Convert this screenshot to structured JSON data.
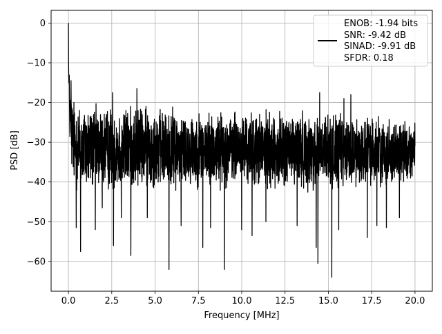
{
  "chart_data": {
    "type": "line",
    "xlabel": "Frequency [MHz]",
    "ylabel": "PSD [dB]",
    "xlim": [
      -1.0,
      21.0
    ],
    "ylim": [
      -67.5,
      3.2
    ],
    "x_ticks": [
      0.0,
      2.5,
      5.0,
      7.5,
      10.0,
      12.5,
      15.0,
      17.5,
      20.0
    ],
    "x_tick_labels": [
      "0.0",
      "2.5",
      "5.0",
      "7.5",
      "10.0",
      "12.5",
      "15.0",
      "17.5",
      "20.0"
    ],
    "y_ticks": [
      0,
      -10,
      -20,
      -30,
      -40,
      -50,
      -60
    ],
    "y_tick_labels": [
      "0",
      "−10",
      "−20",
      "−30",
      "−40",
      "−50",
      "−60"
    ],
    "grid": true,
    "legend_position": "top-right",
    "legend_lines": [
      "ENOB: -1.94 bits",
      "SNR: -9.42 dB",
      "SINAD: -9.91 dB",
      "SFDR: 0.18"
    ],
    "series_color": "#000000",
    "envelope": {
      "x": [
        0.0,
        0.05,
        0.1,
        0.2,
        0.4,
        0.7,
        1.0,
        1.5,
        2.0,
        2.5,
        3.0,
        3.5,
        4.0,
        4.5,
        5.0,
        5.5,
        6.0,
        6.5,
        7.0,
        7.5,
        8.0,
        8.5,
        9.0,
        9.5,
        10.0,
        10.5,
        11.0,
        11.5,
        12.0,
        12.5,
        13.0,
        13.5,
        14.0,
        14.5,
        15.0,
        15.5,
        16.0,
        16.5,
        17.0,
        17.5,
        18.0,
        18.5,
        19.0,
        19.5,
        20.0
      ],
      "upper": [
        0.0,
        -10.0,
        -13.0,
        -16.0,
        -18.0,
        -18.5,
        -19.0,
        -19.5,
        -19.5,
        -19.0,
        -19.5,
        -19.5,
        -19.0,
        -19.5,
        -20.0,
        -20.5,
        -20.0,
        -20.5,
        -21.0,
        -21.0,
        -21.0,
        -21.0,
        -21.0,
        -21.0,
        -21.0,
        -21.5,
        -21.0,
        -21.0,
        -21.5,
        -21.0,
        -21.0,
        -21.0,
        -21.5,
        -21.0,
        -21.5,
        -21.5,
        -22.0,
        -22.0,
        -22.5,
        -22.0,
        -22.5,
        -23.0,
        -23.0,
        -23.5,
        -24.0
      ],
      "lower": [
        -24.0,
        -30.0,
        -34.0,
        -40.0,
        -44.0,
        -44.0,
        -44.0,
        -44.0,
        -44.0,
        -44.0,
        -44.0,
        -43.5,
        -43.5,
        -43.0,
        -43.0,
        -43.0,
        -43.0,
        -43.0,
        -42.5,
        -42.5,
        -43.0,
        -42.5,
        -42.5,
        -42.5,
        -42.0,
        -42.5,
        -43.0,
        -43.0,
        -43.0,
        -43.0,
        -43.0,
        -43.0,
        -43.5,
        -43.5,
        -43.5,
        -43.0,
        -43.0,
        -42.5,
        -42.5,
        -42.0,
        -42.0,
        -42.0,
        -41.5,
        -41.0,
        -40.0
      ]
    },
    "deep_dips": [
      {
        "x": 0.45,
        "y": -51.5
      },
      {
        "x": 0.7,
        "y": -57.5
      },
      {
        "x": 1.55,
        "y": -52.0
      },
      {
        "x": 1.95,
        "y": -46.5
      },
      {
        "x": 2.6,
        "y": -56.0
      },
      {
        "x": 3.05,
        "y": -49.0
      },
      {
        "x": 3.6,
        "y": -58.5
      },
      {
        "x": 4.55,
        "y": -49.0
      },
      {
        "x": 5.8,
        "y": -62.0
      },
      {
        "x": 6.5,
        "y": -51.0
      },
      {
        "x": 7.75,
        "y": -56.5
      },
      {
        "x": 8.2,
        "y": -51.5
      },
      {
        "x": 9.0,
        "y": -62.0
      },
      {
        "x": 10.0,
        "y": -52.0
      },
      {
        "x": 10.6,
        "y": -53.5
      },
      {
        "x": 11.4,
        "y": -50.0
      },
      {
        "x": 13.2,
        "y": -51.0
      },
      {
        "x": 14.3,
        "y": -56.5
      },
      {
        "x": 14.4,
        "y": -60.5
      },
      {
        "x": 15.2,
        "y": -64.0
      },
      {
        "x": 15.6,
        "y": -52.0
      },
      {
        "x": 16.3,
        "y": -52.5
      },
      {
        "x": 17.25,
        "y": -54.0
      },
      {
        "x": 17.8,
        "y": -51.0
      },
      {
        "x": 18.35,
        "y": -51.5
      },
      {
        "x": 19.1,
        "y": -49.0
      }
    ],
    "tall_peaks": [
      {
        "x": 0.0,
        "y": 0.0
      },
      {
        "x": 0.15,
        "y": -14.5
      },
      {
        "x": 2.55,
        "y": -17.5
      },
      {
        "x": 3.95,
        "y": -16.5
      },
      {
        "x": 14.5,
        "y": -17.5
      },
      {
        "x": 15.9,
        "y": -19.0
      },
      {
        "x": 16.3,
        "y": -18.0
      }
    ]
  }
}
